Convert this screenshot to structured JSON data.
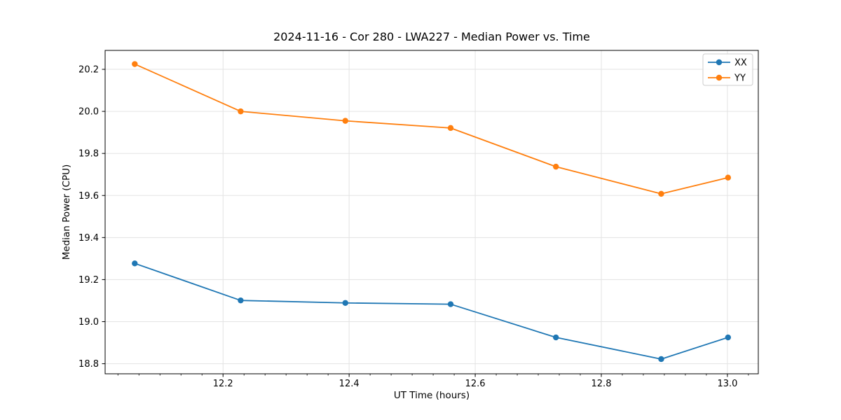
{
  "chart_data": {
    "type": "line",
    "title": "2024-11-16 - Cor 280 - LWA227 - Median Power vs. Time",
    "xlabel": "UT Time (hours)",
    "ylabel": "Median Power (CPU)",
    "xlim": [
      12.013,
      13.049
    ],
    "ylim": [
      18.752,
      20.29
    ],
    "x_ticks": [
      12.2,
      12.4,
      12.6,
      12.8,
      13.0
    ],
    "x_tick_labels": [
      "12.2",
      "12.4",
      "12.6",
      "12.8",
      "13.0"
    ],
    "x_minor_tick_step": 0.0333333,
    "y_ticks": [
      18.8,
      19.0,
      19.2,
      19.4,
      19.6,
      19.8,
      20.0,
      20.2
    ],
    "y_tick_labels": [
      "18.8",
      "19.0",
      "19.2",
      "19.4",
      "19.6",
      "19.8",
      "20.0",
      "20.2"
    ],
    "grid": true,
    "x": [
      12.06,
      12.228,
      12.394,
      12.561,
      12.728,
      12.895,
      13.001
    ],
    "series": [
      {
        "name": "XX",
        "color": "#1f77b4",
        "values": [
          19.277,
          19.101,
          19.089,
          19.083,
          18.925,
          18.822,
          18.925
        ]
      },
      {
        "name": "YY",
        "color": "#ff7f0e",
        "values": [
          20.225,
          20.0,
          19.955,
          19.921,
          19.737,
          19.608,
          19.685
        ]
      }
    ],
    "legend": {
      "position": "upper right",
      "entries": [
        "XX",
        "YY"
      ]
    },
    "colors": {
      "grid": "#e3e3e3",
      "spine": "#000000",
      "tick": "#000000",
      "text": "#000000",
      "legend_border": "#cccccc",
      "legend_bg": "#ffffff"
    }
  }
}
